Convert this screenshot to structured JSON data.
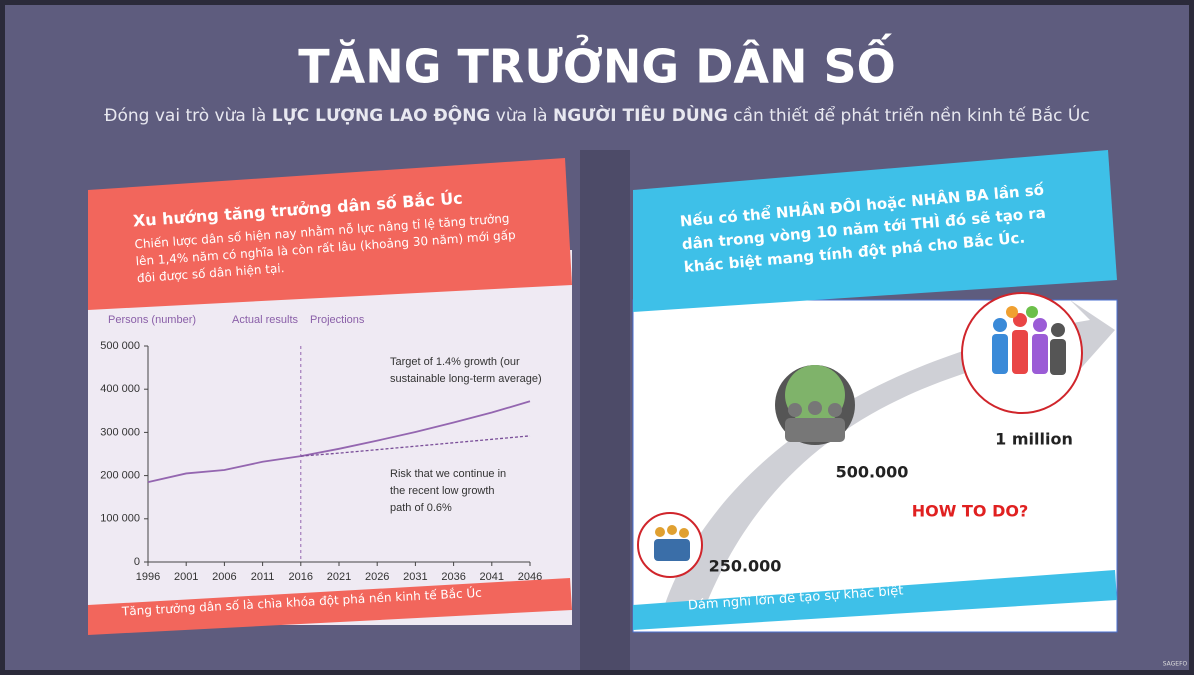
{
  "title": "TĂNG TRƯỞNG DÂN SỐ",
  "subtitle": [
    "Đóng vai trò vừa là ",
    "LỰC LƯỢNG LAO ĐỘNG",
    " vừa là ",
    "NGƯỜI TIÊU DÙNG",
    " cần thiết để phát triển nền kinh tế Bắc Úc"
  ],
  "left": {
    "heading": "Xu hướng tăng trưởng dân số Bắc Úc",
    "body": [
      "Chiến lược dân số hiện nay nhằm nỗ lực nâng tỉ lệ tăng trưởng",
      "lên 1,4% năm có nghĩa là còn rất lâu (khoảng 30 năm) mới gấp",
      "đôi được số dân hiện tại."
    ],
    "footer": "Tăng trưởng dân số là chìa khóa đột phá nền kinh tế Bắc Úc"
  },
  "chart_data": {
    "type": "line",
    "y_label": "Persons (number)",
    "x": [
      1996,
      2001,
      2006,
      2011,
      2016,
      2021,
      2026,
      2031,
      2036,
      2041,
      2046
    ],
    "series": [
      {
        "name": "Actual results",
        "color": "#9466b0",
        "values": [
          185000,
          205000,
          213000,
          232000,
          245000,
          null,
          null,
          null,
          null,
          null,
          null
        ]
      },
      {
        "name": "Projections",
        "color": "#9466b0",
        "values": [
          null,
          null,
          null,
          null,
          245000,
          262000,
          281000,
          301000,
          323000,
          346000,
          372000
        ]
      },
      {
        "color": "#7a4f99",
        "dashed": true,
        "values": [
          null,
          null,
          null,
          null,
          245000,
          252000,
          260000,
          268000,
          276000,
          284000,
          292000
        ]
      }
    ],
    "vline": 2016,
    "annotations": [
      [
        "Target of 1.4% growth (our",
        "sustainable long-term average)"
      ],
      [
        "Risk that we continue in",
        "the recent low growth",
        "path of 0.6%"
      ]
    ],
    "xlim": [
      1996,
      2046
    ],
    "xticks": [
      1996,
      2001,
      2006,
      2011,
      2016,
      2021,
      2026,
      2031,
      2036,
      2041,
      2046
    ],
    "ylim": [
      0,
      500000
    ],
    "yticks": [
      0,
      {
        "value": 100000,
        "label": "100 000"
      },
      {
        "value": 200000,
        "label": "200 000"
      },
      {
        "value": 300000,
        "label": "300 000"
      },
      {
        "value": 400000,
        "label": "400 000"
      },
      {
        "value": 500000,
        "label": "500 000"
      }
    ]
  },
  "right": {
    "heading": [
      "Nếu có thể NHÂN ĐÔI hoặc NHÂN BA lần số",
      "dân trong vòng 10 năm tới THÌ đó sẽ tạo ra",
      "khác biệt mang tính đột phá cho Bắc Úc."
    ],
    "labels": [
      "250.000",
      "500.000",
      "1 million"
    ],
    "question": "HOW TO DO?",
    "footer": "Dám nghĩ lớn để tạo sự khác biệt"
  },
  "watermark": "SAGEFO"
}
